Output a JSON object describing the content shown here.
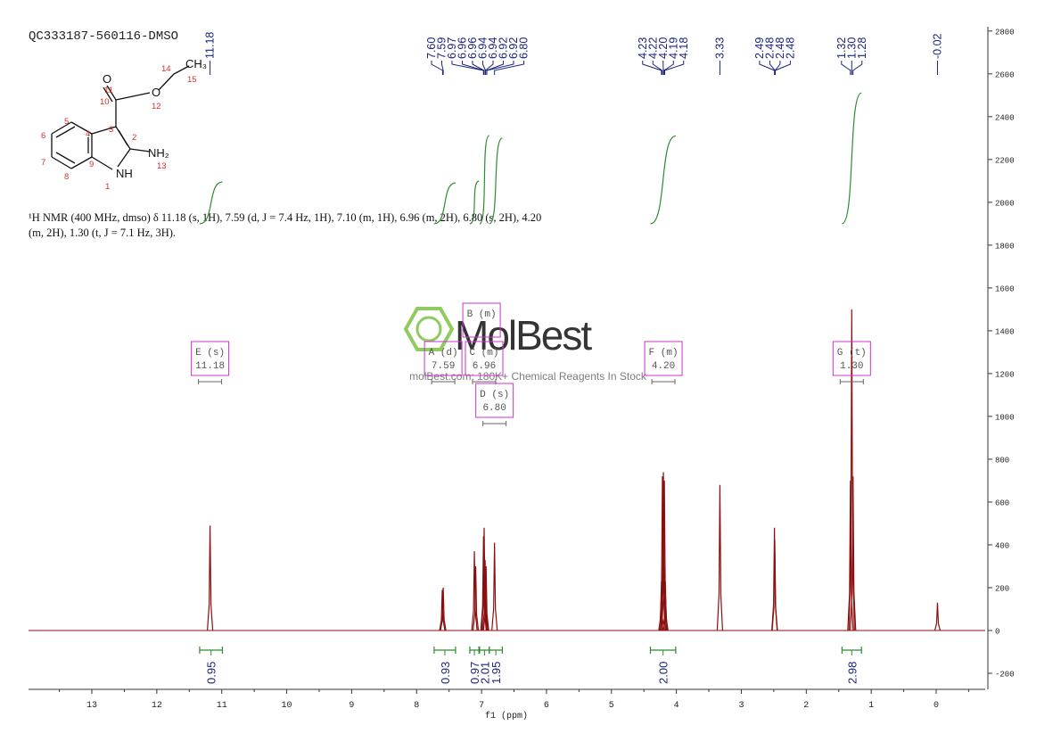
{
  "chart_data": {
    "type": "nmr",
    "title": "QC333187-560116-DMSO",
    "description": "¹H NMR (400 MHz, dmso) δ 11.18 (s, 1H), 7.59 (d, J = 7.4 Hz, 1H), 7.10 (m, 1H), 6.96 (m, 2H), 6.80 (s, 2H), 4.20 (m, 2H), 1.30 (t, J = 7.1 Hz, 3H).",
    "xlabel": "f1 (ppm)",
    "xlim": [
      13.975,
      -0.755
    ],
    "ylim": [
      -275,
      2820
    ],
    "xticks": [
      13,
      12,
      11,
      10,
      9,
      8,
      7,
      6,
      5,
      4,
      3,
      2,
      1,
      0
    ],
    "yticks": [
      -200,
      0,
      200,
      400,
      600,
      800,
      1000,
      1200,
      1400,
      1600,
      1800,
      2000,
      2200,
      2400,
      2600,
      2800
    ],
    "color": "#8b0f0f",
    "integral_color": "#2e8b2e",
    "label_color": "#1a237e",
    "box_color": "#cc33cc",
    "x": [
      11.18,
      7.605,
      7.59,
      7.11,
      7.09,
      6.97,
      6.96,
      6.945,
      6.93,
      6.8,
      4.23,
      4.215,
      4.2,
      4.185,
      4.17,
      3.33,
      2.49,
      2.485,
      1.32,
      1.3,
      1.28,
      -0.02
    ],
    "values": [
      490,
      190,
      200,
      370,
      300,
      440,
      480,
      330,
      300,
      410,
      230,
      720,
      740,
      700,
      230,
      680,
      480,
      420,
      700,
      1500,
      720,
      130
    ],
    "peak_labels": [
      [
        {
          "value": 11.18,
          "label": "11.18"
        }
      ],
      [
        {
          "value": 7.6,
          "label": "7.60"
        },
        {
          "value": 7.59,
          "label": "7.59"
        },
        {
          "value": 6.97,
          "label": "6.97"
        },
        {
          "value": 6.96,
          "label": "6.96"
        },
        {
          "value": 6.96,
          "label": "6.96"
        },
        {
          "value": 6.94,
          "label": "6.94"
        },
        {
          "value": 6.94,
          "label": "6.94"
        },
        {
          "value": 6.92,
          "label": "6.92"
        },
        {
          "value": 6.92,
          "label": "6.92"
        },
        {
          "value": 6.8,
          "label": "6.80"
        }
      ],
      [
        {
          "value": 4.23,
          "label": "4.23"
        },
        {
          "value": 4.22,
          "label": "4.22"
        },
        {
          "value": 4.2,
          "label": "4.20"
        },
        {
          "value": 4.19,
          "label": "4.19"
        },
        {
          "value": 4.18,
          "label": "4.18"
        }
      ],
      [
        {
          "value": 3.33,
          "label": "3.33"
        }
      ],
      [
        {
          "value": 2.49,
          "label": "2.49"
        },
        {
          "value": 2.48,
          "label": "2.48"
        },
        {
          "value": 2.48,
          "label": "2.48"
        },
        {
          "value": 2.48,
          "label": "2.48"
        }
      ],
      [
        {
          "value": 1.32,
          "label": "1.32"
        },
        {
          "value": 1.3,
          "label": "1.30"
        },
        {
          "value": 1.28,
          "label": "1.28"
        }
      ],
      [
        {
          "value": -0.02,
          "label": "-0.02"
        }
      ]
    ],
    "integral_ranges": [
      [
        11.34,
        10.99
      ],
      [
        7.73,
        7.4
      ],
      [
        7.18,
        7.04
      ],
      [
        7.03,
        6.88
      ],
      [
        6.88,
        6.68
      ],
      [
        4.4,
        4.01
      ],
      [
        1.45,
        1.15
      ]
    ],
    "integral_values": [
      0.95,
      0.93,
      0.97,
      2.01,
      1.95,
      2,
      2.98
    ],
    "integral_value_labels": [
      "0.95",
      "0.93",
      "0.97",
      "2.01",
      "1.95",
      "2.00",
      "2.98"
    ],
    "multiplets": [
      {
        "name": "E (s)",
        "shift": {
          "value": 11.18,
          "label": "11.18"
        }
      },
      {
        "name": "A (d)",
        "shift": {
          "value": 7.59,
          "label": "7.59"
        }
      },
      {
        "name": "B (m)"
      },
      {
        "name": "C (m)",
        "shift": {
          "value": 6.96,
          "label": "6.96"
        }
      },
      {
        "name": "D (s)",
        "shift": {
          "value": 6.8,
          "label": "6.80"
        }
      },
      {
        "name": "F (m)",
        "shift": {
          "value": 4.2,
          "label": "4.20"
        }
      },
      {
        "name": "G (t)",
        "shift": {
          "value": 1.3,
          "label": "1.30"
        }
      }
    ],
    "structure": {
      "atoms": [
        "O",
        "O",
        "NH₂",
        "NH",
        "CH₃"
      ],
      "locants": [
        "1",
        "2",
        "3",
        "4",
        "5",
        "6",
        "7",
        "8",
        "9",
        "10",
        "11",
        "12",
        "13",
        "14",
        "15"
      ]
    },
    "watermark": {
      "brand": "MolBest",
      "tagline": "molBest.com: 180K+ Chemical Reagents In Stock"
    }
  }
}
